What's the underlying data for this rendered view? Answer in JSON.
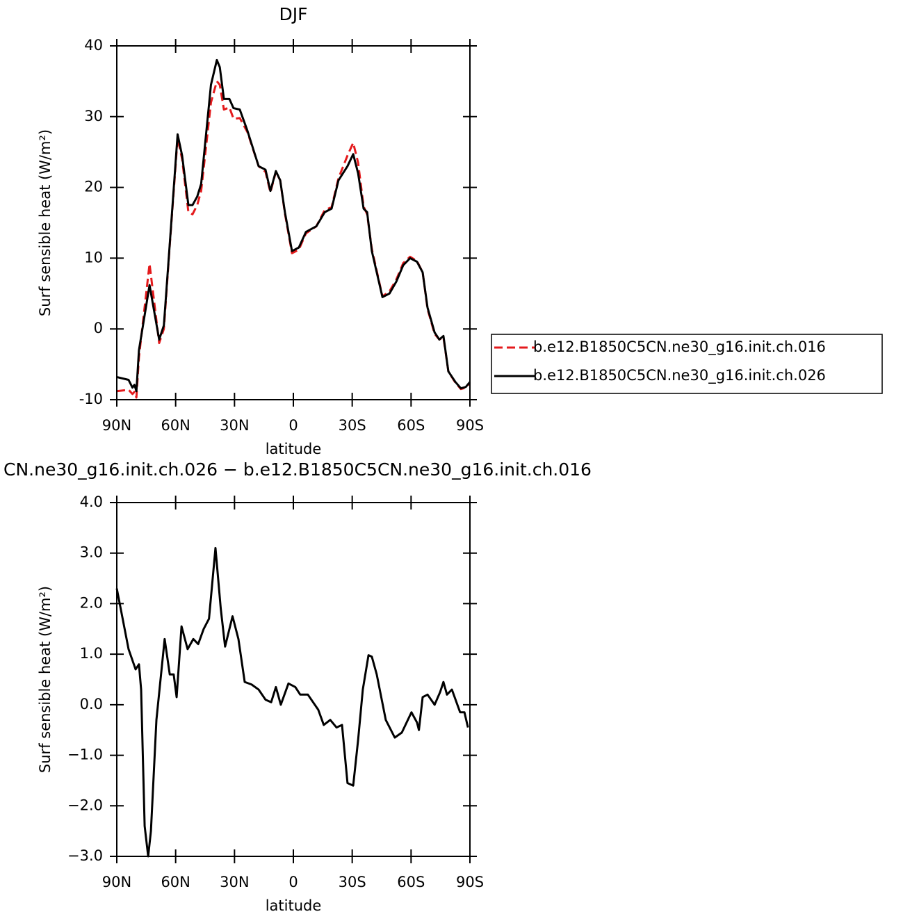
{
  "chart_data": [
    {
      "type": "line",
      "title": "DJF",
      "xlabel": "latitude",
      "ylabel": "Surf sensible heat (W/m²)",
      "x": [
        90,
        84,
        82,
        81,
        80,
        78.7,
        73.3,
        68.4,
        66,
        63,
        59,
        56.7,
        53.5,
        51.4,
        49,
        47,
        42,
        39,
        37.5,
        35.4,
        32.6,
        30.5,
        27.3,
        23.4,
        17.7,
        14.2,
        11.7,
        8.9,
        6.7,
        4.3,
        0.7,
        -2.8,
        -6.4,
        -11.7,
        -16,
        -19.5,
        -23,
        -27.6,
        -30.5,
        -33,
        -35.8,
        -37.6,
        -40,
        -45.4,
        -49,
        -52.5,
        -56,
        -59.5,
        -63,
        -65.9,
        -68.4,
        -72,
        -74.4,
        -76.5,
        -79,
        -82.6,
        -85.4,
        -87.9,
        -90
      ],
      "series": [
        {
          "name": "b.e12.B1850C5CN.ne30_g16.init.ch.016",
          "color": "#e41a1c",
          "linestyle": "dashed",
          "values": [
            -8.8,
            -8.6,
            -9.2,
            -8.9,
            -9.7,
            -4,
            9.2,
            -2,
            0,
            11.8,
            27,
            24,
            16.5,
            16.2,
            17.5,
            19.5,
            32,
            35,
            34.5,
            31,
            31.3,
            29.7,
            29.8,
            27.8,
            23,
            22.2,
            19.3,
            22.2,
            21,
            16.3,
            10.7,
            11.2,
            13.5,
            14.5,
            16.8,
            17.2,
            21.3,
            24.5,
            26.3,
            23.5,
            17.3,
            16.2,
            11.3,
            4.6,
            5.3,
            7,
            9.3,
            10.2,
            9.6,
            8,
            2.8,
            -0.7,
            -1.5,
            -1.2,
            -6,
            -7.6,
            -8.5,
            -8.3,
            -7.6
          ]
        },
        {
          "name": "b.e12.B1850C5CN.ne30_g16.init.ch.026",
          "color": "#000000",
          "linestyle": "solid",
          "values": [
            -6.8,
            -7.2,
            -8.3,
            -7.9,
            -8.8,
            -3,
            6.2,
            -1.5,
            0.5,
            12,
            27.5,
            24.5,
            17.5,
            17.5,
            18.7,
            20.5,
            34.5,
            38,
            37,
            32.5,
            32.5,
            31.2,
            31,
            28,
            23,
            22.5,
            19.5,
            22.3,
            21,
            16.5,
            11,
            11.5,
            13.7,
            14.5,
            16.5,
            17,
            21,
            23,
            24.7,
            22,
            17,
            16.5,
            11,
            4.5,
            5,
            6.7,
            9,
            10,
            9.5,
            8,
            3,
            -0.5,
            -1.5,
            -1,
            -6,
            -7.5,
            -8.4,
            -8.2,
            -7.5
          ]
        }
      ],
      "xlim": [
        90,
        -90
      ],
      "xticks": [
        {
          "value": 90,
          "label": "90N"
        },
        {
          "value": 60,
          "label": "60N"
        },
        {
          "value": 30,
          "label": "30N"
        },
        0,
        {
          "value": -30,
          "label": "30S"
        },
        {
          "value": -60,
          "label": "60S"
        },
        {
          "value": -90,
          "label": "90S"
        }
      ],
      "ylim": [
        -10,
        40
      ],
      "yticks": [
        40,
        30,
        20,
        10,
        0,
        -10
      ],
      "legend": "right"
    },
    {
      "type": "line",
      "title": "CN.ne30_g16.init.ch.026 − b.e12.B1850C5CN.ne30_g16.init.ch.016",
      "xlabel": "latitude",
      "ylabel": "Surf sensible heat (W/m²)",
      "x": [
        90,
        84,
        80.4,
        78.7,
        77.6,
        75.8,
        74,
        72.6,
        69.8,
        65.6,
        63,
        61,
        59.5,
        57,
        53.9,
        51,
        48.5,
        45.7,
        43,
        39.7,
        37,
        34.8,
        31,
        28,
        24.8,
        21.3,
        17.7,
        14.2,
        11.3,
        8.9,
        6.4,
        2.5,
        -1,
        -3.5,
        -7.4,
        -12.7,
        -15.5,
        -18.8,
        -22,
        -24.8,
        -27.6,
        -30.5,
        -33,
        -35.4,
        -38.3,
        -40,
        -42.5,
        -47.1,
        -51.7,
        -55.3,
        -60.2,
        -63,
        -64,
        -65.9,
        -68.4,
        -72,
        -74.8,
        -76.5,
        -78.3,
        -80.8,
        -85,
        -87.2,
        -89
      ],
      "series": [
        {
          "color": "#000000",
          "linestyle": "solid",
          "values": [
            2.3,
            1.1,
            0.7,
            0.8,
            0.3,
            -2.4,
            -3.0,
            -2.5,
            -0.3,
            1.3,
            0.6,
            0.6,
            0.15,
            1.55,
            1.1,
            1.3,
            1.2,
            1.5,
            1.7,
            3.1,
            1.9,
            1.15,
            1.75,
            1.3,
            0.45,
            0.4,
            0.3,
            0.1,
            0.05,
            0.35,
            0.0,
            0.42,
            0.35,
            0.2,
            0.2,
            -0.1,
            -0.4,
            -0.3,
            -0.45,
            -0.4,
            -1.55,
            -1.6,
            -0.7,
            0.3,
            0.98,
            0.95,
            0.6,
            -0.3,
            -0.65,
            -0.55,
            -0.15,
            -0.35,
            -0.5,
            0.15,
            0.2,
            0.0,
            0.25,
            0.45,
            0.2,
            0.3,
            -0.15,
            -0.15,
            -0.45
          ]
        }
      ],
      "xlim": [
        90,
        -90
      ],
      "xticks": [
        {
          "value": 90,
          "label": "90N"
        },
        {
          "value": 60,
          "label": "60N"
        },
        {
          "value": 30,
          "label": "30N"
        },
        0,
        {
          "value": -30,
          "label": "30S"
        },
        {
          "value": -60,
          "label": "60S"
        },
        {
          "value": -90,
          "label": "90S"
        }
      ],
      "ylim": [
        -3,
        4
      ],
      "yticks": [
        {
          "value": 4,
          "label": "4.0"
        },
        {
          "value": 3,
          "label": "3.0"
        },
        {
          "value": 2,
          "label": "2.0"
        },
        {
          "value": 1,
          "label": "1.0"
        },
        {
          "value": 0,
          "label": "0.0"
        },
        {
          "value": -1,
          "label": "−1.0"
        },
        {
          "value": -2,
          "label": "−2.0"
        },
        {
          "value": -3,
          "label": "−3.0"
        }
      ]
    }
  ]
}
